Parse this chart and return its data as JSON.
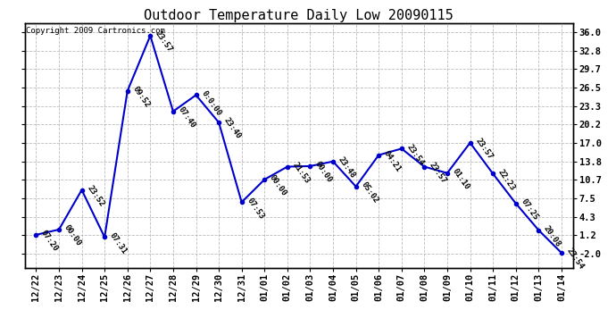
{
  "title": "Outdoor Temperature Daily Low 20090115",
  "copyright": "Copyright 2009 Cartronics.com",
  "line_color": "#0000CC",
  "marker_color": "#0000CC",
  "background_color": "#ffffff",
  "grid_color": "#aaaaaa",
  "dates": [
    "12/22",
    "12/23",
    "12/24",
    "12/25",
    "12/26",
    "12/27",
    "12/28",
    "12/29",
    "12/30",
    "12/31",
    "01/01",
    "01/02",
    "01/03",
    "01/04",
    "01/05",
    "01/06",
    "01/07",
    "01/08",
    "01/09",
    "01/10",
    "01/11",
    "01/12",
    "01/13",
    "01/14"
  ],
  "values": [
    1.2,
    2.1,
    8.9,
    0.8,
    25.9,
    35.4,
    22.4,
    25.2,
    20.5,
    6.8,
    10.7,
    12.9,
    13.0,
    13.8,
    9.5,
    14.9,
    16.0,
    12.9,
    11.8,
    17.0,
    11.7,
    6.6,
    2.0,
    -1.9
  ],
  "time_labels": [
    "07:20",
    "00:00",
    "23:52",
    "07:31",
    "09:52",
    "23:57",
    "07:40",
    "0:0:00",
    "23:40",
    "07:53",
    "00:00",
    "21:53",
    "00:00",
    "23:48",
    "05:02",
    "04:21",
    "23:54",
    "23:57",
    "01:10",
    "23:57",
    "22:23",
    "07:25",
    "20:08",
    "23:54"
  ],
  "yticks": [
    -2.0,
    1.2,
    4.3,
    7.5,
    10.7,
    13.8,
    17.0,
    20.2,
    23.3,
    26.5,
    29.7,
    32.8,
    36.0
  ],
  "ylim": [
    -4.5,
    37.5
  ],
  "title_fontsize": 11,
  "label_fontsize": 6.5,
  "copyright_fontsize": 6.5,
  "tick_fontsize": 7.5,
  "marker_size": 3.0,
  "line_width": 1.5
}
